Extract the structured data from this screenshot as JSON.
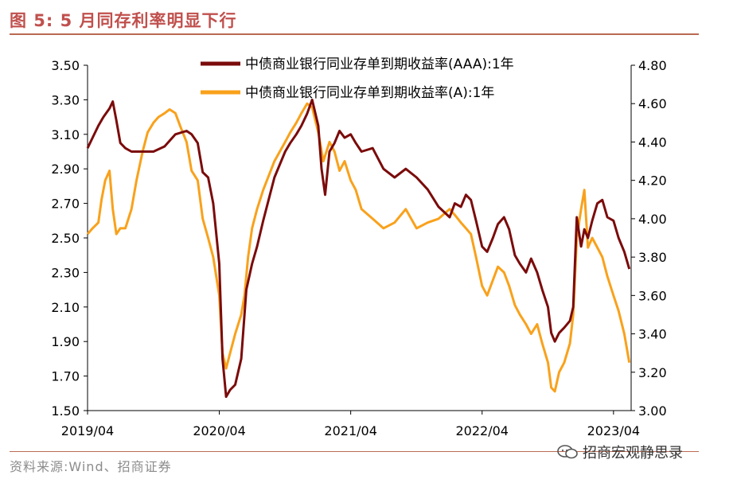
{
  "header": {
    "title": "图 5:  5 月同存利率明显下行"
  },
  "footer": {
    "source": "资料来源:Wind、招商证券",
    "watermark": "招商宏观静思录"
  },
  "colors": {
    "aaa": "#7b0b0b",
    "a": "#f9a11b",
    "accent": "#c0504d"
  },
  "chart_data": {
    "type": "line",
    "title": "",
    "xlabel": "",
    "ylabel": "",
    "y_left": {
      "min": 1.5,
      "max": 3.5,
      "ticks": [
        "3.50",
        "3.30",
        "3.10",
        "2.90",
        "2.70",
        "2.50",
        "2.30",
        "2.10",
        "1.90",
        "1.70",
        "1.50"
      ]
    },
    "y_right": {
      "min": 3.0,
      "max": 4.8,
      "ticks": [
        "4.80",
        "4.60",
        "4.40",
        "4.20",
        "4.00",
        "3.80",
        "3.60",
        "3.40",
        "3.20",
        "3.00"
      ]
    },
    "x_ticks": [
      "2019/04",
      "2020/04",
      "2021/04",
      "2022/04",
      "2023/04"
    ],
    "x_range": [
      "2019-04",
      "2023-05"
    ],
    "grid": false,
    "legend": "top",
    "series": [
      {
        "name": "中债商业银行同业存单到期收益率(AAA):1年",
        "axis": "left",
        "color": "#7b0b0b",
        "points": [
          [
            "2019-04-01",
            3.02
          ],
          [
            "2019-04-15",
            3.08
          ],
          [
            "2019-05-01",
            3.15
          ],
          [
            "2019-05-15",
            3.2
          ],
          [
            "2019-06-01",
            3.25
          ],
          [
            "2019-06-10",
            3.29
          ],
          [
            "2019-06-20",
            3.18
          ],
          [
            "2019-07-01",
            3.05
          ],
          [
            "2019-07-15",
            3.02
          ],
          [
            "2019-08-01",
            3.0
          ],
          [
            "2019-09-01",
            3.0
          ],
          [
            "2019-10-01",
            3.0
          ],
          [
            "2019-11-01",
            3.03
          ],
          [
            "2019-12-01",
            3.1
          ],
          [
            "2020-01-01",
            3.12
          ],
          [
            "2020-01-15",
            3.1
          ],
          [
            "2020-02-01",
            3.05
          ],
          [
            "2020-02-15",
            2.88
          ],
          [
            "2020-03-01",
            2.85
          ],
          [
            "2020-03-15",
            2.7
          ],
          [
            "2020-04-01",
            2.35
          ],
          [
            "2020-04-10",
            1.8
          ],
          [
            "2020-04-20",
            1.58
          ],
          [
            "2020-05-01",
            1.62
          ],
          [
            "2020-05-15",
            1.65
          ],
          [
            "2020-06-01",
            1.8
          ],
          [
            "2020-06-15",
            2.2
          ],
          [
            "2020-07-01",
            2.35
          ],
          [
            "2020-07-15",
            2.45
          ],
          [
            "2020-08-01",
            2.6
          ],
          [
            "2020-09-01",
            2.85
          ],
          [
            "2020-10-01",
            3.0
          ],
          [
            "2020-10-15",
            3.05
          ],
          [
            "2020-11-01",
            3.1
          ],
          [
            "2020-11-15",
            3.15
          ],
          [
            "2020-12-01",
            3.22
          ],
          [
            "2020-12-15",
            3.3
          ],
          [
            "2021-01-01",
            3.15
          ],
          [
            "2021-01-10",
            2.9
          ],
          [
            "2021-01-20",
            2.75
          ],
          [
            "2021-02-01",
            3.0
          ],
          [
            "2021-02-15",
            3.05
          ],
          [
            "2021-03-01",
            3.12
          ],
          [
            "2021-03-15",
            3.08
          ],
          [
            "2021-04-01",
            3.1
          ],
          [
            "2021-04-15",
            3.05
          ],
          [
            "2021-05-01",
            3.0
          ],
          [
            "2021-06-01",
            3.02
          ],
          [
            "2021-07-01",
            2.9
          ],
          [
            "2021-08-01",
            2.85
          ],
          [
            "2021-09-01",
            2.9
          ],
          [
            "2021-10-01",
            2.85
          ],
          [
            "2021-11-01",
            2.78
          ],
          [
            "2021-12-01",
            2.68
          ],
          [
            "2022-01-01",
            2.62
          ],
          [
            "2022-01-15",
            2.7
          ],
          [
            "2022-02-01",
            2.68
          ],
          [
            "2022-02-15",
            2.75
          ],
          [
            "2022-03-01",
            2.72
          ],
          [
            "2022-03-15",
            2.6
          ],
          [
            "2022-04-01",
            2.45
          ],
          [
            "2022-04-15",
            2.42
          ],
          [
            "2022-05-01",
            2.5
          ],
          [
            "2022-05-15",
            2.58
          ],
          [
            "2022-06-01",
            2.62
          ],
          [
            "2022-06-15",
            2.55
          ],
          [
            "2022-07-01",
            2.4
          ],
          [
            "2022-07-15",
            2.35
          ],
          [
            "2022-08-01",
            2.3
          ],
          [
            "2022-08-15",
            2.38
          ],
          [
            "2022-09-01",
            2.3
          ],
          [
            "2022-09-15",
            2.2
          ],
          [
            "2022-10-01",
            2.1
          ],
          [
            "2022-10-10",
            1.95
          ],
          [
            "2022-10-20",
            1.9
          ],
          [
            "2022-11-01",
            1.95
          ],
          [
            "2022-11-15",
            1.98
          ],
          [
            "2022-12-01",
            2.02
          ],
          [
            "2022-12-10",
            2.1
          ],
          [
            "2022-12-20",
            2.62
          ],
          [
            "2023-01-01",
            2.45
          ],
          [
            "2023-01-10",
            2.55
          ],
          [
            "2023-01-20",
            2.5
          ],
          [
            "2023-02-01",
            2.6
          ],
          [
            "2023-02-15",
            2.7
          ],
          [
            "2023-03-01",
            2.72
          ],
          [
            "2023-03-15",
            2.62
          ],
          [
            "2023-04-01",
            2.6
          ],
          [
            "2023-04-15",
            2.5
          ],
          [
            "2023-05-01",
            2.42
          ],
          [
            "2023-05-15",
            2.32
          ]
        ]
      },
      {
        "name": "中债商业银行同业存单到期收益率(A):1年",
        "axis": "right",
        "color": "#f9a11b",
        "points": [
          [
            "2019-04-01",
            3.92
          ],
          [
            "2019-04-15",
            3.95
          ],
          [
            "2019-05-01",
            3.98
          ],
          [
            "2019-05-10",
            4.1
          ],
          [
            "2019-05-20",
            4.2
          ],
          [
            "2019-06-01",
            4.25
          ],
          [
            "2019-06-10",
            4.05
          ],
          [
            "2019-06-20",
            3.92
          ],
          [
            "2019-07-01",
            3.95
          ],
          [
            "2019-07-15",
            3.95
          ],
          [
            "2019-08-01",
            4.05
          ],
          [
            "2019-08-15",
            4.2
          ],
          [
            "2019-09-01",
            4.35
          ],
          [
            "2019-09-15",
            4.45
          ],
          [
            "2019-10-01",
            4.5
          ],
          [
            "2019-10-15",
            4.53
          ],
          [
            "2019-11-01",
            4.55
          ],
          [
            "2019-11-15",
            4.57
          ],
          [
            "2019-12-01",
            4.55
          ],
          [
            "2019-12-15",
            4.48
          ],
          [
            "2020-01-01",
            4.4
          ],
          [
            "2020-01-15",
            4.25
          ],
          [
            "2020-02-01",
            4.2
          ],
          [
            "2020-02-15",
            4.0
          ],
          [
            "2020-03-01",
            3.9
          ],
          [
            "2020-03-15",
            3.8
          ],
          [
            "2020-04-01",
            3.6
          ],
          [
            "2020-04-10",
            3.3
          ],
          [
            "2020-04-20",
            3.22
          ],
          [
            "2020-05-01",
            3.3
          ],
          [
            "2020-05-15",
            3.4
          ],
          [
            "2020-06-01",
            3.5
          ],
          [
            "2020-06-10",
            3.6
          ],
          [
            "2020-06-20",
            3.8
          ],
          [
            "2020-07-01",
            3.95
          ],
          [
            "2020-07-15",
            4.05
          ],
          [
            "2020-08-01",
            4.15
          ],
          [
            "2020-09-01",
            4.3
          ],
          [
            "2020-10-01",
            4.4
          ],
          [
            "2020-10-15",
            4.45
          ],
          [
            "2020-11-01",
            4.5
          ],
          [
            "2020-11-15",
            4.55
          ],
          [
            "2020-12-01",
            4.6
          ],
          [
            "2020-12-15",
            4.58
          ],
          [
            "2021-01-01",
            4.45
          ],
          [
            "2021-01-15",
            4.3
          ],
          [
            "2021-02-01",
            4.4
          ],
          [
            "2021-02-15",
            4.35
          ],
          [
            "2021-03-01",
            4.25
          ],
          [
            "2021-03-15",
            4.3
          ],
          [
            "2021-04-01",
            4.2
          ],
          [
            "2021-04-15",
            4.15
          ],
          [
            "2021-05-01",
            4.05
          ],
          [
            "2021-06-01",
            4.0
          ],
          [
            "2021-07-01",
            3.95
          ],
          [
            "2021-08-01",
            3.98
          ],
          [
            "2021-09-01",
            4.05
          ],
          [
            "2021-10-01",
            3.95
          ],
          [
            "2021-11-01",
            3.98
          ],
          [
            "2021-12-01",
            4.0
          ],
          [
            "2022-01-01",
            4.05
          ],
          [
            "2022-01-15",
            4.02
          ],
          [
            "2022-02-01",
            3.98
          ],
          [
            "2022-02-15",
            3.95
          ],
          [
            "2022-03-01",
            3.92
          ],
          [
            "2022-03-15",
            3.8
          ],
          [
            "2022-04-01",
            3.65
          ],
          [
            "2022-04-15",
            3.6
          ],
          [
            "2022-05-01",
            3.68
          ],
          [
            "2022-05-15",
            3.75
          ],
          [
            "2022-06-01",
            3.72
          ],
          [
            "2022-06-15",
            3.65
          ],
          [
            "2022-07-01",
            3.55
          ],
          [
            "2022-07-15",
            3.5
          ],
          [
            "2022-08-01",
            3.45
          ],
          [
            "2022-08-15",
            3.4
          ],
          [
            "2022-09-01",
            3.45
          ],
          [
            "2022-09-15",
            3.35
          ],
          [
            "2022-10-01",
            3.25
          ],
          [
            "2022-10-10",
            3.12
          ],
          [
            "2022-10-20",
            3.1
          ],
          [
            "2022-11-01",
            3.2
          ],
          [
            "2022-11-15",
            3.25
          ],
          [
            "2022-12-01",
            3.35
          ],
          [
            "2022-12-10",
            3.5
          ],
          [
            "2022-12-20",
            3.9
          ],
          [
            "2023-01-01",
            4.05
          ],
          [
            "2023-01-10",
            4.15
          ],
          [
            "2023-01-20",
            3.85
          ],
          [
            "2023-02-01",
            3.9
          ],
          [
            "2023-02-15",
            3.85
          ],
          [
            "2023-03-01",
            3.8
          ],
          [
            "2023-03-15",
            3.7
          ],
          [
            "2023-04-01",
            3.6
          ],
          [
            "2023-04-15",
            3.52
          ],
          [
            "2023-05-01",
            3.4
          ],
          [
            "2023-05-15",
            3.25
          ]
        ]
      }
    ]
  }
}
